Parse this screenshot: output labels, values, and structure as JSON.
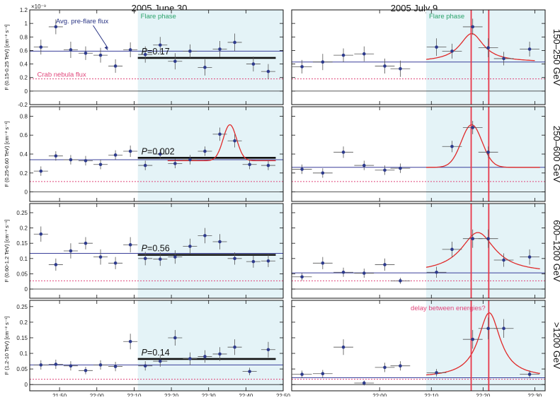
{
  "colors": {
    "shade": "#e4f3f7",
    "points": "#2d3a8c",
    "baseline": "#3a3f9a",
    "crab": "#e0457a",
    "fit": "#e02a2a",
    "vline": "#e8384a",
    "mean": "#111111",
    "flare_text": "#2aa36b",
    "prefl_text": "#2a3585",
    "delay_text": "#e0457a"
  },
  "figure": {
    "col_titles": [
      "2005 June 30",
      "2005 July 9"
    ],
    "exponent_label": "×10⁻⁹",
    "row_energies": [
      "150–250 GeV",
      "250–600 GeV",
      "600–1200 GeV",
      ">1200 GeV"
    ],
    "ylabels": [
      "F (0.15-0.25 TeV) [cm⁻² s⁻¹]",
      "F (0.25-0.60 TeV) [cm⁻² s⁻¹]",
      "F (0.60-1.2 TeV) [cm⁻² s⁻¹]",
      "F (1.2-10 TeV) [cm⁻² s⁻¹]"
    ],
    "annotations": {
      "prefl": "Avg. pre-flare flux",
      "flare": "Flare phase",
      "crab": "Crab nebula flux",
      "delay": "delay between energies?"
    },
    "pvalue_prefix": "P",
    "pvalues": [
      "=0.17",
      "=0.002",
      "=0.56",
      "=0.14"
    ],
    "x_ticks_left": [
      "21:50",
      "22:00",
      "22:10",
      "22:20",
      "22:30",
      "22:40",
      "22:50"
    ],
    "x_ticks_right": [
      "22:00",
      "22:10",
      "22:20",
      "22:30"
    ]
  },
  "chart_data": {
    "type": "scatter",
    "x_unit": "UTC time (minutes)",
    "y_unit": "flux (1e-9 cm^-2 s^-1)",
    "rows": [
      {
        "energy": "150–250 GeV",
        "ylim": [
          -0.2,
          1.2
        ],
        "yticks": [
          -0.2,
          0,
          0.2,
          0.4,
          0.6,
          0.8,
          1,
          1.2
        ],
        "crab": 0.18,
        "left": {
          "xlim": [
            "21:42",
            "22:50"
          ],
          "flare_start": "22:11",
          "prefl": 0.59,
          "mean": {
            "from": "22:11",
            "to": "22:48",
            "y": 0.49
          },
          "points": [
            {
              "t": "21:45",
              "y": 0.65,
              "e": 0.11
            },
            {
              "t": "21:49",
              "y": 0.95,
              "e": 0.11
            },
            {
              "t": "21:53",
              "y": 0.61,
              "e": 0.12
            },
            {
              "t": "21:57",
              "y": 0.56,
              "e": 0.1
            },
            {
              "t": "22:01",
              "y": 0.53,
              "e": 0.11
            },
            {
              "t": "22:05",
              "y": 0.37,
              "e": 0.1
            },
            {
              "t": "22:09",
              "y": 0.61,
              "e": 0.11
            },
            {
              "t": "22:13",
              "y": 0.54,
              "e": 0.12
            },
            {
              "t": "22:17",
              "y": 0.68,
              "e": 0.12
            },
            {
              "t": "22:21",
              "y": 0.44,
              "e": 0.12
            },
            {
              "t": "22:25",
              "y": 0.59,
              "e": 0.1
            },
            {
              "t": "22:29",
              "y": 0.35,
              "e": 0.12
            },
            {
              "t": "22:33",
              "y": 0.62,
              "e": 0.12
            },
            {
              "t": "22:37",
              "y": 0.72,
              "e": 0.13
            },
            {
              "t": "22:42",
              "y": 0.4,
              "e": 0.11
            },
            {
              "t": "22:46",
              "y": 0.29,
              "e": 0.11
            }
          ]
        },
        "right": {
          "xlim": [
            "21:43",
            "22:32"
          ],
          "flare_start": "22:09",
          "prefl": 0.43,
          "points": [
            {
              "t": "21:45",
              "y": 0.36,
              "e": 0.1
            },
            {
              "t": "21:49",
              "y": 0.43,
              "e": 0.12
            },
            {
              "t": "21:53",
              "y": 0.53,
              "e": 0.1
            },
            {
              "t": "21:57",
              "y": 0.55,
              "e": 0.11
            },
            {
              "t": "22:01",
              "y": 0.37,
              "e": 0.11
            },
            {
              "t": "22:04",
              "y": 0.33,
              "e": 0.12
            },
            {
              "t": "22:11",
              "y": 0.65,
              "e": 0.13
            },
            {
              "t": "22:14",
              "y": 0.59,
              "e": 0.11
            },
            {
              "t": "22:18",
              "y": 0.95,
              "e": 0.12
            },
            {
              "t": "22:21",
              "y": 0.64,
              "e": 0.14
            },
            {
              "t": "22:24",
              "y": 0.48,
              "e": 0.1
            },
            {
              "t": "22:29",
              "y": 0.62,
              "e": 0.11
            }
          ],
          "fit": {
            "center": "22:17.8",
            "amp": 0.42,
            "width": 2.8,
            "base": 0.43,
            "from": "22:09",
            "to": "22:30",
            "shape": "lorentz"
          }
        }
      },
      {
        "energy": "250–600 GeV",
        "ylim": [
          -0.1,
          0.9
        ],
        "yticks": [
          0,
          0.2,
          0.4,
          0.6,
          0.8
        ],
        "crab": 0.11,
        "left": {
          "xlim": [
            "21:42",
            "22:50"
          ],
          "flare_start": "22:11",
          "prefl": 0.34,
          "mean": {
            "from": "22:11",
            "to": "22:48",
            "y": 0.36
          },
          "points": [
            {
              "t": "21:45",
              "y": 0.22,
              "e": 0.05
            },
            {
              "t": "21:49",
              "y": 0.38,
              "e": 0.05
            },
            {
              "t": "21:53",
              "y": 0.34,
              "e": 0.05
            },
            {
              "t": "21:57",
              "y": 0.33,
              "e": 0.05
            },
            {
              "t": "22:01",
              "y": 0.29,
              "e": 0.05
            },
            {
              "t": "22:05",
              "y": 0.39,
              "e": 0.05
            },
            {
              "t": "22:09",
              "y": 0.43,
              "e": 0.06
            },
            {
              "t": "22:13",
              "y": 0.28,
              "e": 0.05
            },
            {
              "t": "22:17",
              "y": 0.4,
              "e": 0.05
            },
            {
              "t": "22:21",
              "y": 0.3,
              "e": 0.05
            },
            {
              "t": "22:25",
              "y": 0.34,
              "e": 0.05
            },
            {
              "t": "22:29",
              "y": 0.43,
              "e": 0.05
            },
            {
              "t": "22:33",
              "y": 0.61,
              "e": 0.07
            },
            {
              "t": "22:37",
              "y": 0.54,
              "e": 0.07
            },
            {
              "t": "22:41",
              "y": 0.29,
              "e": 0.05
            },
            {
              "t": "22:46",
              "y": 0.28,
              "e": 0.05
            }
          ],
          "fit": {
            "center": "22:35.7",
            "amp": 0.38,
            "width": 1.8,
            "base": 0.33,
            "from": "22:19",
            "to": "22:48",
            "shape": "gauss"
          }
        },
        "right": {
          "xlim": [
            "21:43",
            "22:32"
          ],
          "flare_start": "22:09",
          "prefl": 0.26,
          "points": [
            {
              "t": "21:45",
              "y": 0.24,
              "e": 0.05
            },
            {
              "t": "21:49",
              "y": 0.2,
              "e": 0.05
            },
            {
              "t": "21:53",
              "y": 0.42,
              "e": 0.06
            },
            {
              "t": "21:57",
              "y": 0.28,
              "e": 0.05
            },
            {
              "t": "22:01",
              "y": 0.23,
              "e": 0.05
            },
            {
              "t": "22:04",
              "y": 0.25,
              "e": 0.05
            },
            {
              "t": "22:14",
              "y": 0.48,
              "e": 0.06
            },
            {
              "t": "22:18",
              "y": 0.68,
              "e": 0.07
            },
            {
              "t": "22:21",
              "y": 0.42,
              "e": 0.06
            }
          ],
          "fit": {
            "center": "22:17.8",
            "amp": 0.45,
            "width": 2.0,
            "base": 0.26,
            "from": "22:09",
            "to": "22:31",
            "shape": "gauss"
          }
        }
      },
      {
        "energy": "600–1200 GeV",
        "ylim": [
          -0.03,
          0.28
        ],
        "yticks": [
          0,
          0.05,
          0.1,
          0.15,
          0.2,
          0.25
        ],
        "crab": 0.027,
        "left": {
          "xlim": [
            "21:42",
            "22:50"
          ],
          "flare_start": "22:11",
          "prefl": 0.117,
          "mean": {
            "from": "22:11",
            "to": "22:48",
            "y": 0.112
          },
          "points": [
            {
              "t": "21:45",
              "y": 0.18,
              "e": 0.025
            },
            {
              "t": "21:49",
              "y": 0.08,
              "e": 0.02
            },
            {
              "t": "21:53",
              "y": 0.125,
              "e": 0.025
            },
            {
              "t": "21:57",
              "y": 0.15,
              "e": 0.02
            },
            {
              "t": "22:01",
              "y": 0.105,
              "e": 0.025
            },
            {
              "t": "22:05",
              "y": 0.085,
              "e": 0.02
            },
            {
              "t": "22:09",
              "y": 0.145,
              "e": 0.025
            },
            {
              "t": "22:13",
              "y": 0.1,
              "e": 0.022
            },
            {
              "t": "22:17",
              "y": 0.098,
              "e": 0.022
            },
            {
              "t": "22:21",
              "y": 0.105,
              "e": 0.022
            },
            {
              "t": "22:25",
              "y": 0.14,
              "e": 0.025
            },
            {
              "t": "22:29",
              "y": 0.175,
              "e": 0.025
            },
            {
              "t": "22:33",
              "y": 0.155,
              "e": 0.025
            },
            {
              "t": "22:37",
              "y": 0.1,
              "e": 0.02
            },
            {
              "t": "22:42",
              "y": 0.09,
              "e": 0.02
            },
            {
              "t": "22:46",
              "y": 0.092,
              "e": 0.02
            }
          ]
        },
        "right": {
          "xlim": [
            "21:43",
            "22:32"
          ],
          "flare_start": "22:09",
          "prefl": 0.053,
          "points": [
            {
              "t": "21:45",
              "y": 0.04,
              "e": 0.012
            },
            {
              "t": "21:49",
              "y": 0.085,
              "e": 0.02
            },
            {
              "t": "21:53",
              "y": 0.055,
              "e": 0.015
            },
            {
              "t": "21:57",
              "y": 0.052,
              "e": 0.015
            },
            {
              "t": "22:01",
              "y": 0.08,
              "e": 0.02
            },
            {
              "t": "22:04",
              "y": 0.027,
              "e": 0.01
            },
            {
              "t": "22:11",
              "y": 0.055,
              "e": 0.018
            },
            {
              "t": "22:14",
              "y": 0.13,
              "e": 0.025
            },
            {
              "t": "22:18",
              "y": 0.165,
              "e": 0.03
            },
            {
              "t": "22:21",
              "y": 0.165,
              "e": 0.03
            },
            {
              "t": "22:24",
              "y": 0.095,
              "e": 0.022
            },
            {
              "t": "22:29",
              "y": 0.105,
              "e": 0.025
            }
          ],
          "fit": {
            "center": "22:19",
            "amp": 0.132,
            "width": 4.0,
            "base": 0.053,
            "from": "22:09",
            "to": "22:31",
            "shape": "lorentz"
          }
        }
      },
      {
        "energy": ">1200 GeV",
        "ylim": [
          -0.02,
          0.27
        ],
        "yticks": [
          0,
          0.05,
          0.1,
          0.15,
          0.2,
          0.25
        ],
        "crab": 0.017,
        "left": {
          "xlim": [
            "21:42",
            "22:50"
          ],
          "flare_start": "22:11",
          "prefl": 0.063,
          "mean": {
            "from": "22:11",
            "to": "22:48",
            "y": 0.082
          },
          "points": [
            {
              "t": "21:45",
              "y": 0.063,
              "e": 0.015
            },
            {
              "t": "21:49",
              "y": 0.065,
              "e": 0.015
            },
            {
              "t": "21:53",
              "y": 0.06,
              "e": 0.015
            },
            {
              "t": "21:57",
              "y": 0.045,
              "e": 0.012
            },
            {
              "t": "22:01",
              "y": 0.063,
              "e": 0.015
            },
            {
              "t": "22:05",
              "y": 0.058,
              "e": 0.015
            },
            {
              "t": "22:09",
              "y": 0.138,
              "e": 0.025
            },
            {
              "t": "22:13",
              "y": 0.06,
              "e": 0.015
            },
            {
              "t": "22:17",
              "y": 0.075,
              "e": 0.018
            },
            {
              "t": "22:21",
              "y": 0.15,
              "e": 0.025
            },
            {
              "t": "22:25",
              "y": 0.083,
              "e": 0.02
            },
            {
              "t": "22:29",
              "y": 0.09,
              "e": 0.02
            },
            {
              "t": "22:33",
              "y": 0.098,
              "e": 0.022
            },
            {
              "t": "22:37",
              "y": 0.12,
              "e": 0.025
            },
            {
              "t": "22:41",
              "y": 0.042,
              "e": 0.012
            },
            {
              "t": "22:46",
              "y": 0.112,
              "e": 0.025
            }
          ]
        },
        "right": {
          "xlim": [
            "21:43",
            "22:32"
          ],
          "flare_start": "22:09",
          "prefl": 0.022,
          "points": [
            {
              "t": "21:45",
              "y": 0.033,
              "e": 0.012
            },
            {
              "t": "21:49",
              "y": 0.035,
              "e": 0.012
            },
            {
              "t": "21:53",
              "y": 0.12,
              "e": 0.025
            },
            {
              "t": "21:57",
              "y": 0.005,
              "e": 0.008
            },
            {
              "t": "22:01",
              "y": 0.055,
              "e": 0.015
            },
            {
              "t": "22:04",
              "y": 0.06,
              "e": 0.015
            },
            {
              "t": "22:11",
              "y": 0.038,
              "e": 0.012
            },
            {
              "t": "22:18",
              "y": 0.145,
              "e": 0.03
            },
            {
              "t": "22:21",
              "y": 0.18,
              "e": 0.035
            },
            {
              "t": "22:24",
              "y": 0.18,
              "e": 0.03
            },
            {
              "t": "22:29",
              "y": 0.033,
              "e": 0.012
            }
          ],
          "fit": {
            "center": "22:21.2",
            "amp": 0.208,
            "width": 2.6,
            "base": 0.022,
            "from": "22:09",
            "to": "22:31",
            "shape": "lorentz"
          }
        }
      }
    ],
    "vlines": [
      "22:17.7",
      "22:21.1"
    ]
  }
}
